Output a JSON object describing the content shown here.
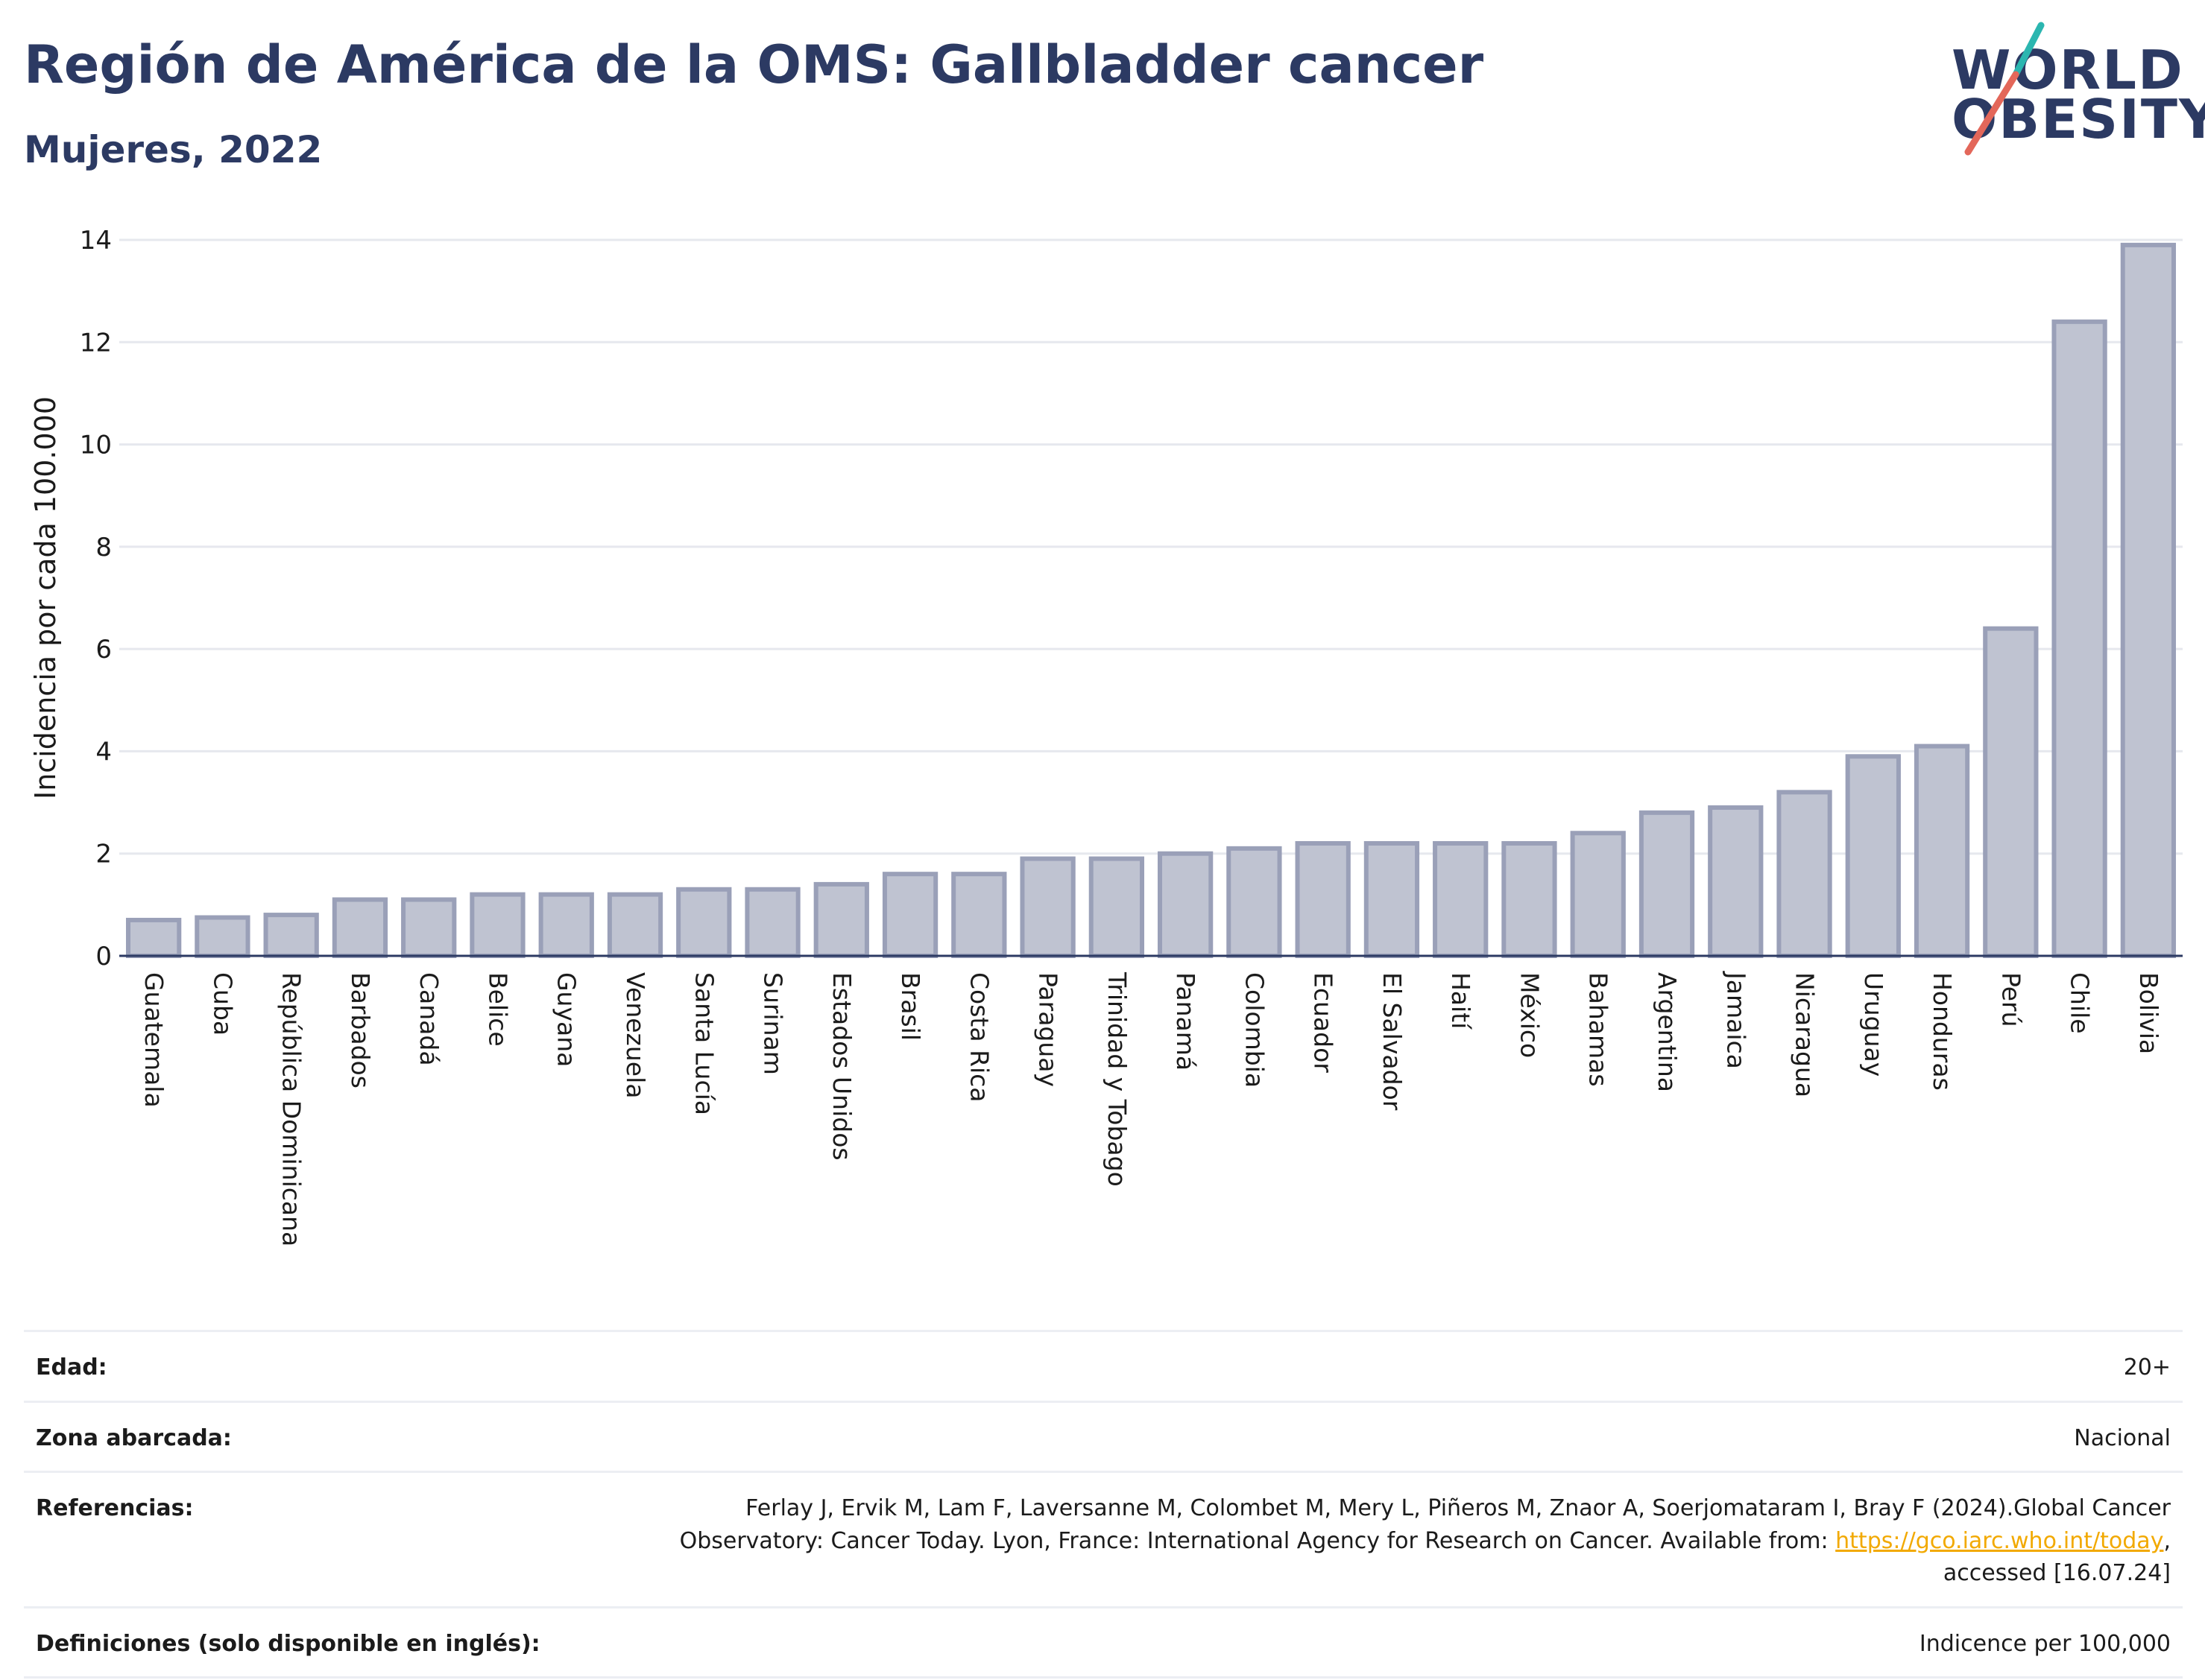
{
  "header": {
    "title": "Región de América de la OMS: Gallbladder cancer",
    "subtitle": "Mujeres, 2022"
  },
  "logo": {
    "line1": "WORLD",
    "line2": "OBESITY",
    "colors": {
      "text": "#2c3a63",
      "teal": "#2bb6b0",
      "red": "#e3675a"
    }
  },
  "colors": {
    "bar_fill": "#bfc3d1",
    "bar_stroke": "#9aa0b8",
    "grid": "#e6e8ee",
    "axis": "#2c3a63"
  },
  "chart_data": {
    "type": "bar",
    "title": "",
    "xlabel": "",
    "ylabel": "Incidencia por cada 100.000",
    "ylim": [
      0,
      14
    ],
    "yticks": [
      0,
      2,
      4,
      6,
      8,
      10,
      12,
      14
    ],
    "grid": true,
    "categories": [
      "Guatemala",
      "Cuba",
      "República Dominicana",
      "Barbados",
      "Canadá",
      "Belice",
      "Guyana",
      "Venezuela",
      "Santa Lucía",
      "Surinam",
      "Estados Unidos",
      "Brasil",
      "Costa Rica",
      "Paraguay",
      "Trinidad y Tobago",
      "Panamá",
      "Colombia",
      "Ecuador",
      "El Salvador",
      "Haití",
      "México",
      "Bahamas",
      "Argentina",
      "Jamaica",
      "Nicaragua",
      "Uruguay",
      "Honduras",
      "Perú",
      "Chile",
      "Bolivia"
    ],
    "values": [
      0.7,
      0.75,
      0.8,
      1.1,
      1.1,
      1.2,
      1.2,
      1.2,
      1.3,
      1.3,
      1.4,
      1.6,
      1.6,
      1.9,
      1.9,
      2.0,
      2.1,
      2.2,
      2.2,
      2.2,
      2.2,
      2.4,
      2.8,
      2.9,
      3.2,
      3.9,
      4.1,
      6.4,
      12.4,
      13.9
    ]
  },
  "meta": {
    "rows": [
      {
        "label": "Edad:",
        "value": "20+"
      },
      {
        "label": "Zona abarcada:",
        "value": "Nacional"
      },
      {
        "label": "Definiciones (solo disponible en inglés):",
        "value": "Indicence per 100,000"
      }
    ],
    "references": {
      "label": "Referencias:",
      "line1": "Ferlay J, Ervik M, Lam F, Laversanne M, Colombet M, Mery L, Piñeros M, Znaor A, Soerjomataram I, Bray F (2024).Global Cancer",
      "line2_prefix": "Observatory: Cancer Today. Lyon, France: International Agency for Research on Cancer. Available from: ",
      "link": "https://gco.iarc.who.int/today",
      "line2_suffix": ",",
      "line3": "accessed [16.07.24]"
    }
  }
}
